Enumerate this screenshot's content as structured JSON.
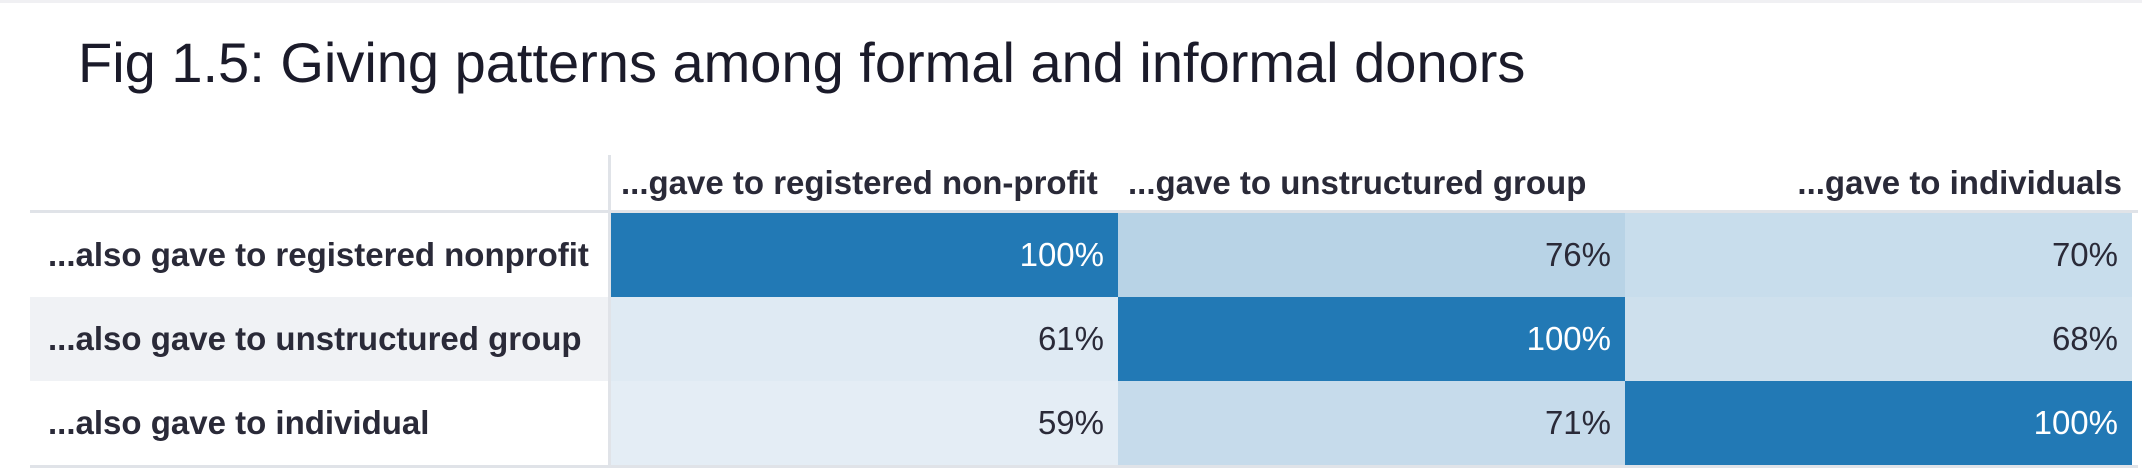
{
  "chart_data": {
    "type": "heatmap",
    "title": "Fig 1.5: Giving patterns among formal and informal donors",
    "columns": [
      "...gave to registered non-profit",
      "...gave to unstructured group",
      "...gave to individuals"
    ],
    "rows": [
      "...also gave to registered nonprofit",
      "...also gave to unstructured group",
      "...also gave to individual"
    ],
    "values": [
      [
        100,
        76,
        70
      ],
      [
        61,
        100,
        68
      ],
      [
        59,
        71,
        100
      ]
    ],
    "labels": [
      [
        "100%",
        "76%",
        "70%"
      ],
      [
        "61%",
        "100%",
        "68%"
      ],
      [
        "59%",
        "71%",
        "100%"
      ]
    ],
    "unit": "%",
    "colors": {
      "high": "#2279b5",
      "low": "#eef3f8",
      "text_dark": "#2a2a38",
      "text_light": "#ffffff"
    }
  }
}
